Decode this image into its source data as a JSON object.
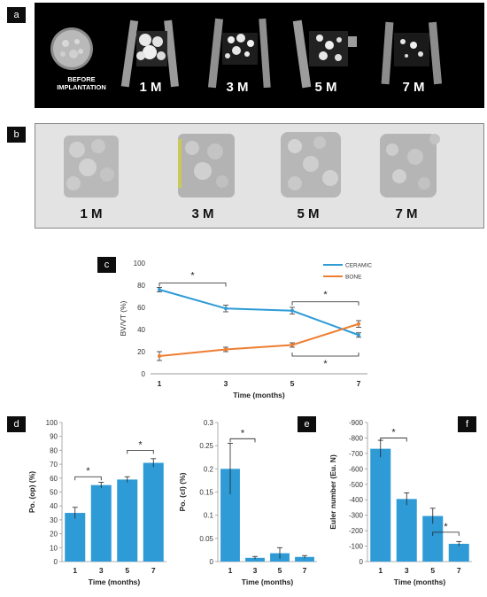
{
  "panels": {
    "a": {
      "tag": "a",
      "labels": [
        "BEFORE IMPLANTATION",
        "1 M",
        "3 M",
        "5 M",
        "7 M"
      ]
    },
    "b": {
      "tag": "b",
      "labels": [
        "1 M",
        "3 M",
        "5 M",
        "7 M"
      ]
    },
    "c": {
      "tag": "c"
    },
    "d": {
      "tag": "d"
    },
    "e": {
      "tag": "e"
    },
    "f": {
      "tag": "f"
    }
  },
  "colors": {
    "ceramic": "#2e9bd6",
    "bone": "#ed7d31",
    "bar": "#2e9bd6"
  },
  "chart_data": [
    {
      "panel": "c",
      "type": "line",
      "x": [
        1,
        3,
        5,
        7
      ],
      "xticks": [
        "1",
        "3",
        "5",
        "7"
      ],
      "xlabel": "Time (months)",
      "ylabel": "BV/VT (%)",
      "ylim": [
        0,
        100
      ],
      "yticks": [
        "0",
        "20",
        "40",
        "60",
        "80",
        "100"
      ],
      "legend_position": "top-right",
      "series": [
        {
          "name": "CERAMIC",
          "values": [
            76,
            59,
            57,
            35
          ],
          "errors": [
            2,
            3,
            3,
            2
          ]
        },
        {
          "name": "BONE",
          "values": [
            16,
            22,
            26,
            45
          ],
          "errors": [
            4,
            2,
            2,
            3
          ]
        }
      ],
      "significance": [
        "*",
        "*",
        "*"
      ]
    },
    {
      "panel": "d",
      "type": "bar",
      "categories": [
        "1",
        "3",
        "5",
        "7"
      ],
      "values": [
        35,
        55,
        59,
        71
      ],
      "errors": [
        4,
        2,
        2,
        3
      ],
      "xlabel": "Time (months)",
      "ylabel": "Po. (op) (%)",
      "ylim": [
        0,
        100
      ],
      "yticks": [
        "0",
        "10",
        "20",
        "30",
        "40",
        "50",
        "60",
        "70",
        "80",
        "90",
        "100"
      ],
      "significance": [
        "*",
        "*"
      ]
    },
    {
      "panel": "e",
      "type": "bar",
      "categories": [
        "1",
        "3",
        "5",
        "7"
      ],
      "values": [
        0.2,
        0.008,
        0.018,
        0.01
      ],
      "errors": [
        0.055,
        0.003,
        0.012,
        0.003
      ],
      "xlabel": "Time (months)",
      "ylabel": "Po. (cl) (%)",
      "ylim": [
        0,
        0.3
      ],
      "yticks": [
        "0",
        "0.05",
        "0.1",
        "0.15",
        "0.2",
        "0.25",
        "0.3"
      ],
      "significance": [
        "*"
      ]
    },
    {
      "panel": "f",
      "type": "bar",
      "categories": [
        "1",
        "3",
        "5",
        "7"
      ],
      "values": [
        -730,
        -405,
        -295,
        -115
      ],
      "errors": [
        55,
        40,
        50,
        15
      ],
      "xlabel": "Time (months)",
      "ylabel": "Euler number (Eu. N)",
      "ylim": [
        0,
        -900
      ],
      "yticks": [
        "0",
        "-100",
        "-200",
        "-300",
        "-400",
        "-500",
        "-600",
        "-700",
        "-800",
        "-900"
      ],
      "significance": [
        "*",
        "*"
      ]
    }
  ]
}
